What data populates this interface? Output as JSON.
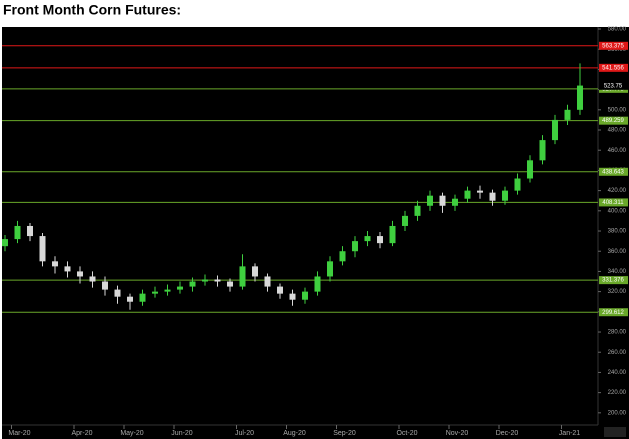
{
  "chart_data": {
    "type": "candlestick",
    "title": "Front Month Corn Futures:",
    "categories": [
      null,
      "Mar-20",
      null,
      null,
      null,
      null,
      "Apr-20",
      null,
      null,
      null,
      "May-20",
      null,
      null,
      null,
      "Jun-20",
      null,
      null,
      null,
      null,
      "Jul-20",
      null,
      null,
      null,
      "Aug-20",
      null,
      null,
      null,
      "Sep-20",
      null,
      null,
      null,
      null,
      "Oct-20",
      null,
      null,
      null,
      "Nov-20",
      null,
      null,
      null,
      "Dec-20",
      null,
      null,
      null,
      null,
      "Jan-21",
      null
    ],
    "open": [
      365,
      372,
      385,
      375,
      350,
      345,
      340,
      335,
      330,
      322,
      315,
      310,
      318,
      320,
      322,
      325,
      330,
      332,
      330,
      325,
      345,
      335,
      325,
      318,
      312,
      320,
      335,
      350,
      360,
      370,
      375,
      368,
      385,
      395,
      405,
      415,
      405,
      412,
      420,
      418,
      410,
      420,
      432,
      450,
      470,
      490,
      500
    ],
    "high": [
      376,
      390,
      388,
      378,
      355,
      350,
      345,
      340,
      335,
      326,
      318,
      322,
      325,
      327,
      330,
      334,
      337,
      336,
      333,
      357,
      348,
      338,
      328,
      322,
      324,
      340,
      355,
      365,
      375,
      380,
      379,
      390,
      400,
      410,
      420,
      418,
      416,
      424,
      425,
      421,
      424,
      437,
      455,
      475,
      495,
      505,
      546
    ],
    "low": [
      360,
      368,
      370,
      345,
      338,
      334,
      328,
      324,
      316,
      308,
      302,
      306,
      314,
      316,
      318,
      320,
      326,
      325,
      320,
      322,
      330,
      320,
      313,
      306,
      308,
      316,
      330,
      346,
      354,
      365,
      363,
      365,
      380,
      390,
      400,
      398,
      400,
      408,
      412,
      405,
      406,
      416,
      428,
      446,
      466,
      485,
      495
    ],
    "close": [
      372,
      385,
      375,
      350,
      345,
      340,
      335,
      330,
      322,
      315,
      310,
      318,
      320,
      322,
      325,
      330,
      332,
      330,
      325,
      345,
      335,
      325,
      318,
      312,
      320,
      335,
      350,
      360,
      370,
      375,
      368,
      385,
      395,
      405,
      415,
      405,
      412,
      420,
      418,
      410,
      420,
      432,
      450,
      470,
      490,
      500,
      524
    ],
    "up_color": "#3fcf3f",
    "down_color": "#d8d8d8",
    "ylim": [
      183,
      581
    ],
    "yticks": [
      {
        "value": 200,
        "label": "200.00"
      },
      {
        "value": 220,
        "label": "220.00"
      },
      {
        "value": 240,
        "label": "240.00"
      },
      {
        "value": 260,
        "label": "260.00"
      },
      {
        "value": 280,
        "label": "280.00"
      },
      {
        "value": 300,
        "label": "300.00"
      },
      {
        "value": 320,
        "label": "320.00"
      },
      {
        "value": 340,
        "label": "340.00"
      },
      {
        "value": 360,
        "label": "360.00"
      },
      {
        "value": 380,
        "label": "380.00"
      },
      {
        "value": 400,
        "label": "400.00"
      },
      {
        "value": 420,
        "label": "420.00"
      },
      {
        "value": 440,
        "label": "440.00"
      },
      {
        "value": 460,
        "label": "460.00"
      },
      {
        "value": 480,
        "label": "480.00"
      },
      {
        "value": 500,
        "label": "500.00"
      },
      {
        "value": 520,
        "label": "520.00"
      },
      {
        "value": 540,
        "label": "540.00"
      },
      {
        "value": 560,
        "label": "560.00"
      },
      {
        "value": 580,
        "label": "580.00"
      }
    ],
    "levels": [
      {
        "value": 563.375,
        "label": "563.375",
        "color": "#e01818"
      },
      {
        "value": 541.556,
        "label": "541.556",
        "color": "#e01818"
      },
      {
        "value": 520.778,
        "label": "520.778",
        "color": "#6aa82a"
      },
      {
        "value": 489.259,
        "label": "489.259",
        "color": "#6aa82a"
      },
      {
        "value": 438.643,
        "label": "438.643",
        "color": "#6aa82a"
      },
      {
        "value": 408.311,
        "label": "408.311",
        "color": "#6aa82a"
      },
      {
        "value": 331.376,
        "label": "331.376",
        "color": "#6aa82a"
      },
      {
        "value": 299.612,
        "label": "299.612",
        "color": "#6aa82a"
      }
    ],
    "last_price": {
      "value": 523.75,
      "label": "523.75"
    }
  }
}
